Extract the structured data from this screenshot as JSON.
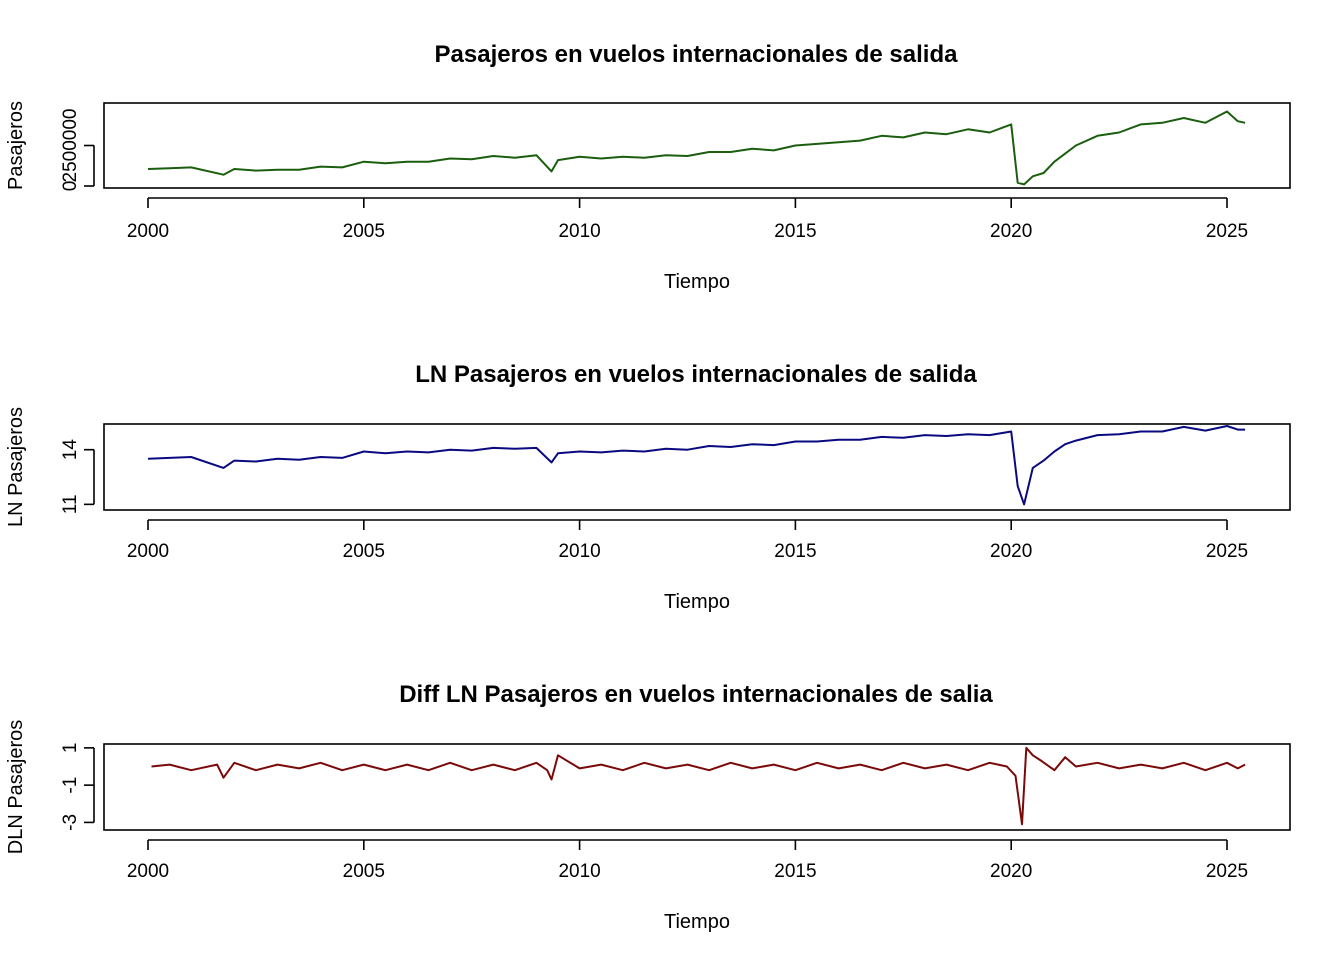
{
  "chart_data": [
    {
      "type": "line",
      "title": "Pasajeros en vuelos internacionales de salida",
      "xlabel": "Tiempo",
      "ylabel": "Pasajeros",
      "xlim": [
        2000,
        2025.5
      ],
      "ylim": [
        0,
        5000000
      ],
      "xticks": [
        2000,
        2005,
        2010,
        2015,
        2020,
        2025
      ],
      "xtick_labels": [
        "2000",
        "2005",
        "2010",
        "2015",
        "2020",
        "2025"
      ],
      "yticks": [
        0,
        2500000
      ],
      "ytick_labels": [
        "0",
        "2500000"
      ],
      "color": "#1a5e0e",
      "x": [
        2000,
        2000.5,
        2001,
        2001.75,
        2002,
        2002.5,
        2003,
        2003.5,
        2004,
        2004.5,
        2005,
        2005.5,
        2006,
        2006.5,
        2007,
        2007.5,
        2008,
        2008.5,
        2009,
        2009.35,
        2009.5,
        2010,
        2010.5,
        2011,
        2011.5,
        2012,
        2012.5,
        2013,
        2013.5,
        2014,
        2014.5,
        2015,
        2015.5,
        2016,
        2016.5,
        2017,
        2017.5,
        2018,
        2018.5,
        2019,
        2019.5,
        2020,
        2020.15,
        2020.3,
        2020.5,
        2020.75,
        2021,
        2021.25,
        2021.5,
        2022,
        2022.5,
        2023,
        2023.5,
        2024,
        2024.5,
        2025,
        2025.25,
        2025.42
      ],
      "values": [
        1050000,
        1100000,
        1150000,
        700000,
        1050000,
        950000,
        1000000,
        1000000,
        1200000,
        1150000,
        1500000,
        1400000,
        1500000,
        1500000,
        1700000,
        1650000,
        1850000,
        1750000,
        1900000,
        900000,
        1600000,
        1800000,
        1700000,
        1800000,
        1750000,
        1900000,
        1850000,
        2100000,
        2100000,
        2300000,
        2200000,
        2500000,
        2600000,
        2700000,
        2800000,
        3100000,
        3000000,
        3300000,
        3200000,
        3500000,
        3300000,
        3800000,
        200000,
        100000,
        600000,
        800000,
        1500000,
        2000000,
        2500000,
        3100000,
        3300000,
        3800000,
        3900000,
        4200000,
        3900000,
        4600000,
        4000000,
        3900000
      ]
    },
    {
      "type": "line",
      "title": "LN Pasajeros en vuelos internacionales de salida",
      "xlabel": "Tiempo",
      "ylabel": "LN Pasajeros",
      "xlim": [
        2000,
        2025.5
      ],
      "ylim": [
        10.8,
        15.3
      ],
      "xticks": [
        2000,
        2005,
        2010,
        2015,
        2020,
        2025
      ],
      "xtick_labels": [
        "2000",
        "2005",
        "2010",
        "2015",
        "2020",
        "2025"
      ],
      "yticks": [
        11,
        14
      ],
      "ytick_labels": [
        "11",
        "14"
      ],
      "color": "#0a0a80",
      "x": [
        2000,
        2000.5,
        2001,
        2001.75,
        2002,
        2002.5,
        2003,
        2003.5,
        2004,
        2004.5,
        2005,
        2005.5,
        2006,
        2006.5,
        2007,
        2007.5,
        2008,
        2008.5,
        2009,
        2009.35,
        2009.5,
        2010,
        2010.5,
        2011,
        2011.5,
        2012,
        2012.5,
        2013,
        2013.5,
        2014,
        2014.5,
        2015,
        2015.5,
        2016,
        2016.5,
        2017,
        2017.5,
        2018,
        2018.5,
        2019,
        2019.5,
        2020,
        2020.15,
        2020.3,
        2020.5,
        2020.75,
        2021,
        2021.25,
        2021.5,
        2022,
        2022.5,
        2023,
        2023.5,
        2024,
        2024.5,
        2025,
        2025.25,
        2025.42
      ],
      "values": [
        13.5,
        13.55,
        13.6,
        13.0,
        13.4,
        13.35,
        13.5,
        13.45,
        13.6,
        13.55,
        13.9,
        13.8,
        13.9,
        13.85,
        14.0,
        13.95,
        14.1,
        14.05,
        14.1,
        13.3,
        13.8,
        13.9,
        13.85,
        13.95,
        13.9,
        14.05,
        14.0,
        14.2,
        14.15,
        14.3,
        14.25,
        14.45,
        14.45,
        14.55,
        14.55,
        14.7,
        14.65,
        14.8,
        14.75,
        14.85,
        14.8,
        15.0,
        12.0,
        11.0,
        13.0,
        13.4,
        13.9,
        14.3,
        14.5,
        14.8,
        14.85,
        15.0,
        15.0,
        15.25,
        15.05,
        15.3,
        15.1,
        15.1
      ]
    },
    {
      "type": "line",
      "title": "Diff LN Pasajeros en vuelos internacionales de salia",
      "xlabel": "Tiempo",
      "ylabel": "DLN Pasajeros",
      "xlim": [
        2000,
        2025.5
      ],
      "ylim": [
        -3.3,
        1.1
      ],
      "xticks": [
        2000,
        2005,
        2010,
        2015,
        2020,
        2025
      ],
      "xtick_labels": [
        "2000",
        "2005",
        "2010",
        "2015",
        "2020",
        "2025"
      ],
      "yticks": [
        -3,
        -1,
        1
      ],
      "ytick_labels": [
        "-3",
        "-1",
        "1"
      ],
      "color": "#7a0a0a",
      "x": [
        2000.08,
        2000.5,
        2001,
        2001.6,
        2001.75,
        2002,
        2002.5,
        2003,
        2003.5,
        2004,
        2004.5,
        2005,
        2005.5,
        2006,
        2006.5,
        2007,
        2007.5,
        2008,
        2008.5,
        2009,
        2009.25,
        2009.35,
        2009.5,
        2010,
        2010.5,
        2011,
        2011.5,
        2012,
        2012.5,
        2013,
        2013.5,
        2014,
        2014.5,
        2015,
        2015.5,
        2016,
        2016.5,
        2017,
        2017.5,
        2018,
        2018.5,
        2019,
        2019.5,
        2019.9,
        2020.1,
        2020.25,
        2020.35,
        2020.5,
        2020.7,
        2021,
        2021.25,
        2021.5,
        2022,
        2022.5,
        2023,
        2023.5,
        2024,
        2024.5,
        2025,
        2025.25,
        2025.42
      ],
      "values": [
        0.0,
        0.1,
        -0.2,
        0.1,
        -0.6,
        0.2,
        -0.2,
        0.1,
        -0.1,
        0.2,
        -0.2,
        0.1,
        -0.2,
        0.1,
        -0.2,
        0.2,
        -0.2,
        0.1,
        -0.2,
        0.2,
        -0.2,
        -0.7,
        0.6,
        -0.1,
        0.1,
        -0.2,
        0.2,
        -0.1,
        0.1,
        -0.2,
        0.2,
        -0.1,
        0.1,
        -0.2,
        0.2,
        -0.1,
        0.1,
        -0.2,
        0.2,
        -0.1,
        0.1,
        -0.2,
        0.2,
        0.0,
        -0.5,
        -3.1,
        1.0,
        0.6,
        0.3,
        -0.2,
        0.5,
        0.0,
        0.2,
        -0.1,
        0.1,
        -0.1,
        0.2,
        -0.2,
        0.2,
        -0.1,
        0.1
      ]
    }
  ]
}
